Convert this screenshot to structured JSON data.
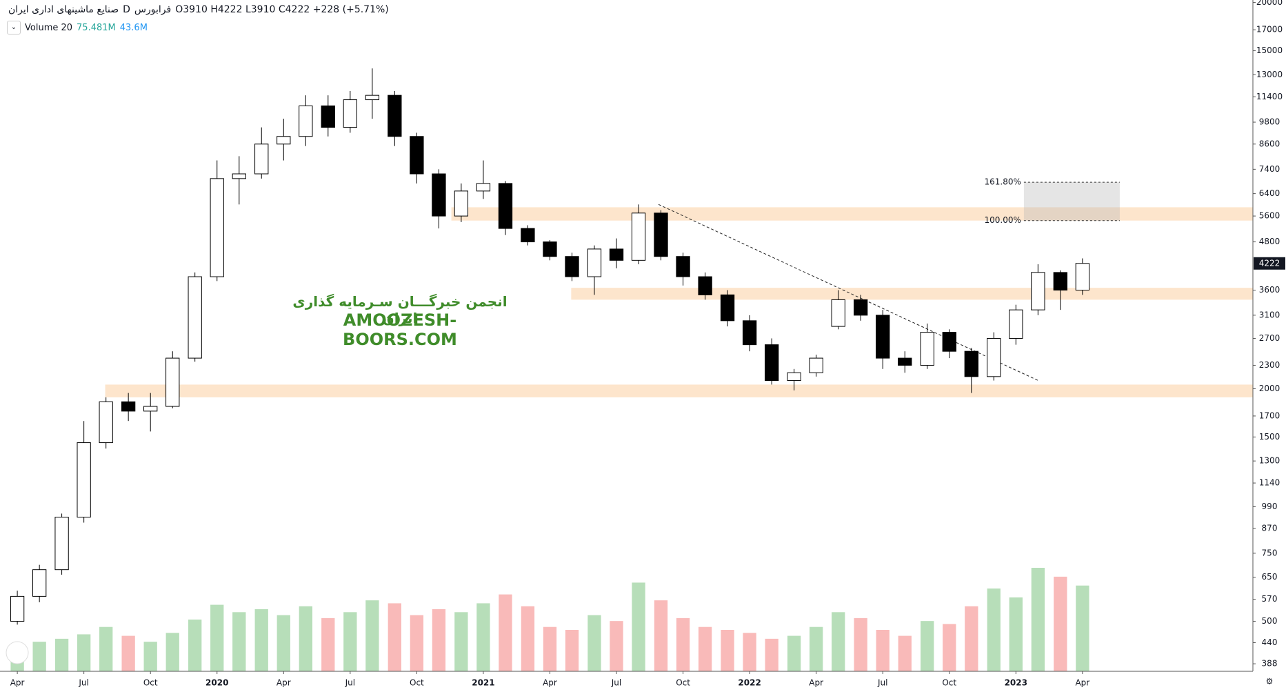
{
  "chart_data": {
    "type": "candlestick",
    "header": {
      "symbol_name": "صنایع ماشینهای اداری ایران",
      "interval": "D",
      "exchange": "فرابورس",
      "open_label": "O",
      "open": 3910,
      "high_label": "H",
      "high": 4222,
      "low_label": "L",
      "low": 3910,
      "close_label": "C",
      "close": 4222,
      "change": "+228 (+5.71%)"
    },
    "volume_header": {
      "name": "Volume 20",
      "value": "75.481M",
      "average": "43.6M"
    },
    "watermark": {
      "line1": "انجمن خبرگـــان سـرمایه گذاری ایران",
      "line2": "AMOOZESH-BOORS.COM"
    },
    "x": [
      2019.25,
      2019.333,
      2019.417,
      2019.5,
      2019.583,
      2019.667,
      2019.75,
      2019.833,
      2019.917,
      2020.0,
      2020.083,
      2020.167,
      2020.25,
      2020.333,
      2020.417,
      2020.5,
      2020.583,
      2020.667,
      2020.75,
      2020.833,
      2020.917,
      2021.0,
      2021.083,
      2021.167,
      2021.25,
      2021.333,
      2021.417,
      2021.5,
      2021.583,
      2021.667,
      2021.75,
      2021.833,
      2021.917,
      2022.0,
      2022.083,
      2022.167,
      2022.25,
      2022.333,
      2022.417,
      2022.5,
      2022.583,
      2022.667,
      2022.75,
      2022.833,
      2022.917,
      2023.0,
      2023.083,
      2023.167,
      2023.25
    ],
    "open": [
      500,
      580,
      680,
      930,
      1450,
      1850,
      1750,
      1800,
      2400,
      3900,
      7000,
      7200,
      8600,
      9000,
      10800,
      9500,
      11200,
      11500,
      9000,
      7200,
      5600,
      6500,
      6800,
      5200,
      4800,
      4400,
      3900,
      4600,
      4300,
      5700,
      4400,
      3900,
      3500,
      3000,
      2600,
      2100,
      2200,
      2900,
      3400,
      3100,
      2400,
      2300,
      2800,
      2500,
      2150,
      2700,
      3200,
      4000,
      3600
    ],
    "high": [
      600,
      700,
      950,
      1650,
      1900,
      1950,
      1950,
      2500,
      4000,
      7800,
      8000,
      9500,
      10000,
      11500,
      11500,
      11800,
      13500,
      11800,
      9200,
      7400,
      6800,
      7800,
      6900,
      5300,
      4850,
      4500,
      4700,
      4900,
      6000,
      5800,
      4500,
      4000,
      3600,
      3100,
      2700,
      2250,
      2450,
      3600,
      3500,
      3200,
      2500,
      2950,
      2850,
      2550,
      2800,
      3300,
      4200,
      4050,
      4350
    ],
    "low": [
      490,
      560,
      660,
      900,
      1400,
      1650,
      1550,
      1780,
      2350,
      3800,
      6000,
      7000,
      7800,
      8500,
      9000,
      9200,
      10000,
      8500,
      6800,
      5200,
      5400,
      6200,
      5000,
      4700,
      4300,
      3800,
      3500,
      4100,
      4200,
      4300,
      3700,
      3400,
      2900,
      2500,
      2050,
      1980,
      2150,
      2850,
      3000,
      2250,
      2200,
      2250,
      2400,
      1950,
      2100,
      2600,
      3100,
      3200,
      3500
    ],
    "close": [
      580,
      680,
      930,
      1450,
      1850,
      1750,
      1800,
      2400,
      3900,
      7000,
      7200,
      8600,
      9000,
      10800,
      9500,
      11200,
      11500,
      9000,
      7200,
      5600,
      6500,
      6800,
      5200,
      4800,
      4400,
      3900,
      4600,
      4300,
      5700,
      4400,
      3900,
      3500,
      3000,
      2600,
      2100,
      2200,
      2400,
      3400,
      3100,
      2400,
      2300,
      2800,
      2500,
      2150,
      2700,
      3200,
      4000,
      3600,
      4222
    ],
    "volume": [
      18,
      20,
      22,
      25,
      30,
      24,
      20,
      26,
      35,
      45,
      40,
      42,
      38,
      44,
      36,
      40,
      48,
      46,
      38,
      42,
      40,
      46,
      52,
      44,
      30,
      28,
      38,
      34,
      60,
      48,
      36,
      30,
      28,
      26,
      22,
      24,
      30,
      40,
      36,
      28,
      24,
      34,
      32,
      44,
      56,
      50,
      70,
      64,
      58
    ],
    "up_color": "#a5d6a7",
    "down_color": "#f7a9a7",
    "xlim": [
      2019.185,
      2023.89
    ],
    "xticks": [
      {
        "value": 2019.25,
        "label": "Apr"
      },
      {
        "value": 2019.5,
        "label": "Jul"
      },
      {
        "value": 2019.75,
        "label": "Oct"
      },
      2020,
      {
        "value": 2020.25,
        "label": "Apr"
      },
      {
        "value": 2020.5,
        "label": "Jul"
      },
      {
        "value": 2020.75,
        "label": "Oct"
      },
      2021,
      {
        "value": 2021.25,
        "label": "Apr"
      },
      {
        "value": 2021.5,
        "label": "Jul"
      },
      {
        "value": 2021.75,
        "label": "Oct"
      },
      2022,
      {
        "value": 2022.25,
        "label": "Apr"
      },
      {
        "value": 2022.5,
        "label": "Jul"
      },
      {
        "value": 2022.75,
        "label": "Oct"
      },
      2023,
      {
        "value": 2023.25,
        "label": "Apr"
      }
    ],
    "ylim": [
      371,
      20300
    ],
    "log_scale": true,
    "yticks": [
      20000,
      17000,
      15000,
      13000,
      11400,
      9800,
      8600,
      7400,
      6400,
      5600,
      4800,
      3600,
      3100,
      2700,
      2300,
      2000,
      1700,
      1500,
      1300,
      1140,
      990,
      870,
      750,
      650,
      570,
      500,
      440,
      388
    ],
    "last_price": 4222,
    "zones": [
      {
        "low": 5450,
        "high": 5900,
        "x_start": 2020.88
      },
      {
        "low": 3400,
        "high": 3650,
        "x_start": 2021.33
      },
      {
        "low": 1900,
        "high": 2050,
        "x_start": 2019.58
      }
    ],
    "zone_color": "#fde5cc",
    "fib": {
      "x": [
        2023.03,
        2023.39
      ],
      "levels": [
        {
          "ratio": {
            "value": 161.8,
            "label": "161.80%"
          },
          "price": 6850
        },
        {
          "ratio": {
            "value": 100,
            "label": "100.00%"
          },
          "price": 5450
        }
      ]
    },
    "trendline": {
      "x": [
        2021.658,
        2023.084
      ],
      "y": [
        6000,
        2100
      ]
    }
  }
}
